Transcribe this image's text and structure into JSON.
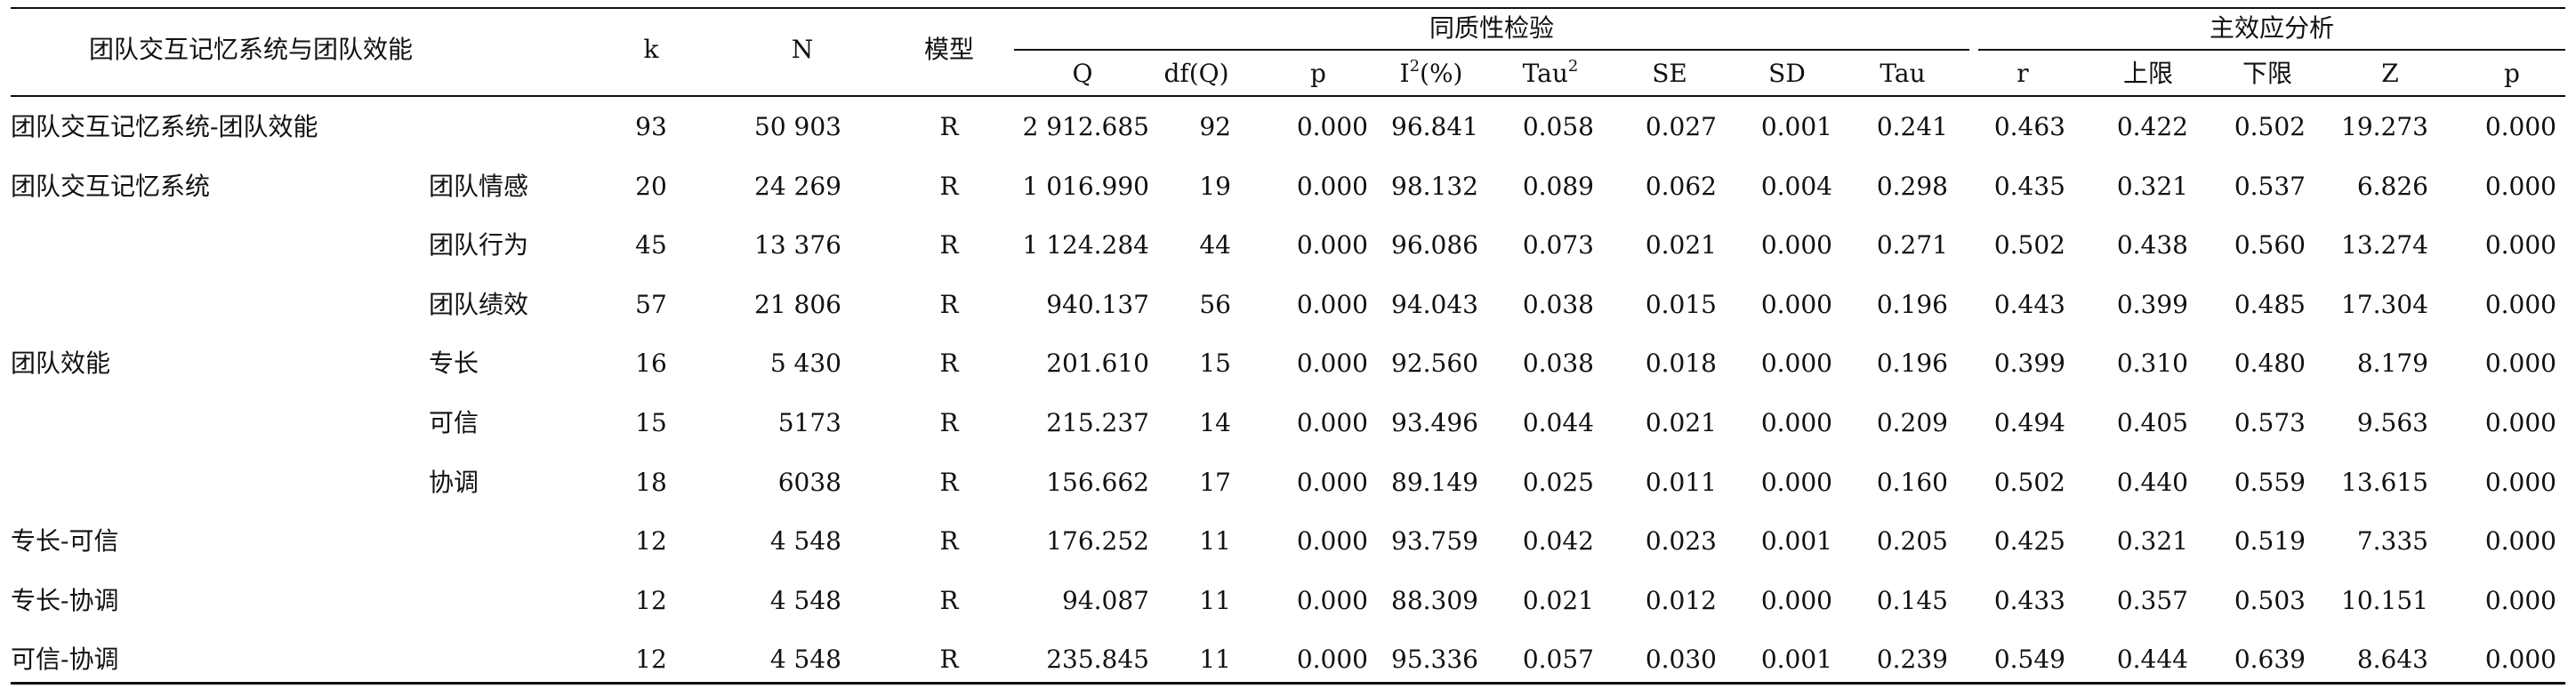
{
  "table": {
    "header": {
      "title_col": "团队交互记忆系统与团队效能",
      "k": "k",
      "N": "N",
      "model": "模型",
      "group_homogeneity": "同质性检验",
      "group_main_effect": "主效应分析",
      "Q": "Q",
      "dfQ": "df(Q)",
      "p": "p",
      "I2_base": "I",
      "I2_sup": "2",
      "I2_rest": "(%)",
      "tau2_base": "Tau",
      "tau2_sup": "2",
      "SE": "SE",
      "SD": "SD",
      "Tau": "Tau",
      "r": "r",
      "upper": "上限",
      "lower": "下限",
      "Z": "Z",
      "p2": "p"
    },
    "rows": [
      {
        "name": "团队交互记忆系统-团队效能",
        "sub": "",
        "k": "93",
        "N": "50 903",
        "model": "R",
        "Q": "2 912.685",
        "dfQ": "92",
        "p": "0.000",
        "I2": "96.841",
        "tau2": "0.058",
        "SE": "0.027",
        "SD": "0.001",
        "Tau": "0.241",
        "r": "0.463",
        "upper": "0.422",
        "lower": "0.502",
        "Z": "19.273",
        "p2": "0.000"
      },
      {
        "name": "团队交互记忆系统",
        "sub": "团队情感",
        "k": "20",
        "N": "24 269",
        "model": "R",
        "Q": "1 016.990",
        "dfQ": "19",
        "p": "0.000",
        "I2": "98.132",
        "tau2": "0.089",
        "SE": "0.062",
        "SD": "0.004",
        "Tau": "0.298",
        "r": "0.435",
        "upper": "0.321",
        "lower": "0.537",
        "Z": "6.826",
        "p2": "0.000"
      },
      {
        "name": "",
        "sub": "团队行为",
        "k": "45",
        "N": "13 376",
        "model": "R",
        "Q": "1 124.284",
        "dfQ": "44",
        "p": "0.000",
        "I2": "96.086",
        "tau2": "0.073",
        "SE": "0.021",
        "SD": "0.000",
        "Tau": "0.271",
        "r": "0.502",
        "upper": "0.438",
        "lower": "0.560",
        "Z": "13.274",
        "p2": "0.000"
      },
      {
        "name": "",
        "sub": "团队绩效",
        "k": "57",
        "N": "21 806",
        "model": "R",
        "Q": "940.137",
        "dfQ": "56",
        "p": "0.000",
        "I2": "94.043",
        "tau2": "0.038",
        "SE": "0.015",
        "SD": "0.000",
        "Tau": "0.196",
        "r": "0.443",
        "upper": "0.399",
        "lower": "0.485",
        "Z": "17.304",
        "p2": "0.000"
      },
      {
        "name": "团队效能",
        "sub": "专长",
        "k": "16",
        "N": "5 430",
        "model": "R",
        "Q": "201.610",
        "dfQ": "15",
        "p": "0.000",
        "I2": "92.560",
        "tau2": "0.038",
        "SE": "0.018",
        "SD": "0.000",
        "Tau": "0.196",
        "r": "0.399",
        "upper": "0.310",
        "lower": "0.480",
        "Z": "8.179",
        "p2": "0.000"
      },
      {
        "name": "",
        "sub": "可信",
        "k": "15",
        "N": "5173",
        "model": "R",
        "Q": "215.237",
        "dfQ": "14",
        "p": "0.000",
        "I2": "93.496",
        "tau2": "0.044",
        "SE": "0.021",
        "SD": "0.000",
        "Tau": "0.209",
        "r": "0.494",
        "upper": "0.405",
        "lower": "0.573",
        "Z": "9.563",
        "p2": "0.000"
      },
      {
        "name": "",
        "sub": "协调",
        "k": "18",
        "N": "6038",
        "model": "R",
        "Q": "156.662",
        "dfQ": "17",
        "p": "0.000",
        "I2": "89.149",
        "tau2": "0.025",
        "SE": "0.011",
        "SD": "0.000",
        "Tau": "0.160",
        "r": "0.502",
        "upper": "0.440",
        "lower": "0.559",
        "Z": "13.615",
        "p2": "0.000"
      },
      {
        "name": "专长-可信",
        "sub": "",
        "k": "12",
        "N": "4 548",
        "model": "R",
        "Q": "176.252",
        "dfQ": "11",
        "p": "0.000",
        "I2": "93.759",
        "tau2": "0.042",
        "SE": "0.023",
        "SD": "0.001",
        "Tau": "0.205",
        "r": "0.425",
        "upper": "0.321",
        "lower": "0.519",
        "Z": "7.335",
        "p2": "0.000"
      },
      {
        "name": "专长-协调",
        "sub": "",
        "k": "12",
        "N": "4 548",
        "model": "R",
        "Q": "94.087",
        "dfQ": "11",
        "p": "0.000",
        "I2": "88.309",
        "tau2": "0.021",
        "SE": "0.012",
        "SD": "0.000",
        "Tau": "0.145",
        "r": "0.433",
        "upper": "0.357",
        "lower": "0.503",
        "Z": "10.151",
        "p2": "0.000"
      },
      {
        "name": "可信-协调",
        "sub": "",
        "k": "12",
        "N": "4 548",
        "model": "R",
        "Q": "235.845",
        "dfQ": "11",
        "p": "0.000",
        "I2": "95.336",
        "tau2": "0.057",
        "SE": "0.030",
        "SD": "0.001",
        "Tau": "0.239",
        "r": "0.549",
        "upper": "0.444",
        "lower": "0.639",
        "Z": "8.643",
        "p2": "0.000"
      }
    ]
  }
}
